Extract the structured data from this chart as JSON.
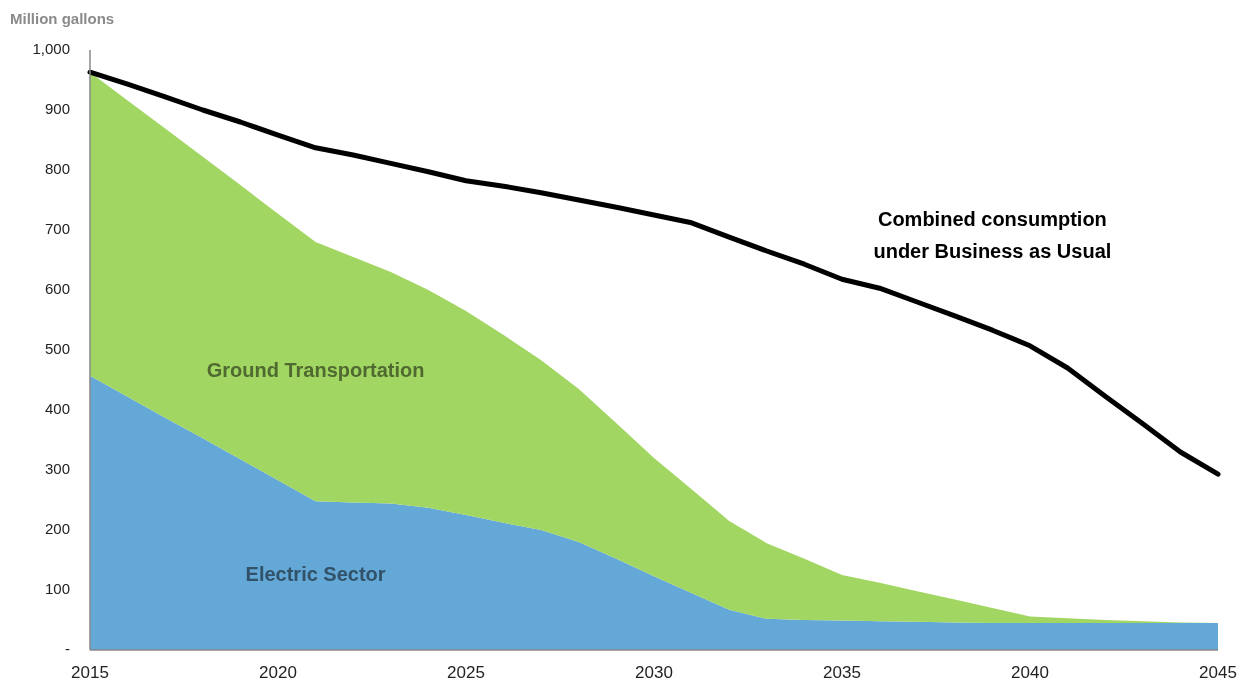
{
  "chart_data": {
    "type": "area",
    "stacked": true,
    "ylabel": "Million gallons",
    "x": [
      2015,
      2016,
      2017,
      2018,
      2019,
      2020,
      2021,
      2022,
      2023,
      2024,
      2025,
      2026,
      2027,
      2028,
      2029,
      2030,
      2031,
      2032,
      2033,
      2034,
      2035,
      2036,
      2037,
      2038,
      2039,
      2040,
      2041,
      2042,
      2043,
      2044,
      2045
    ],
    "xlim": [
      2015,
      2045
    ],
    "xticks": [
      2015,
      2020,
      2025,
      2030,
      2035,
      2040,
      2045
    ],
    "ylim": [
      0,
      1000
    ],
    "yticks": [
      {
        "value": 0,
        "label": "-"
      },
      100,
      200,
      300,
      400,
      500,
      600,
      700,
      800,
      900,
      {
        "value": 1000,
        "label": "1,000"
      }
    ],
    "series": [
      {
        "name": "Electric Sector",
        "color": "#63a8d6",
        "values": [
          457,
          422,
          387,
          353,
          318,
          283,
          248,
          246,
          244,
          237,
          225,
          212,
          200,
          180,
          152,
          123,
          95,
          67,
          52,
          50,
          49,
          48,
          47,
          46,
          45,
          45,
          45,
          45,
          45,
          45,
          45
        ]
      },
      {
        "name": "Ground Transportation",
        "color": "#a2d662",
        "values": [
          506,
          494,
          482,
          469,
          457,
          444,
          432,
          409,
          386,
          363,
          340,
          313,
          283,
          255,
          226,
          197,
          173,
          148,
          126,
          102,
          76,
          64,
          51,
          38,
          25,
          11,
          8,
          5,
          3,
          1,
          0
        ]
      },
      {
        "name": "Combined consumption under Business as Usual",
        "type": "line",
        "color": "#000000",
        "values": [
          963,
          943,
          922,
          900,
          880,
          858,
          837,
          825,
          811,
          797,
          782,
          773,
          762,
          750,
          738,
          725,
          712,
          688,
          665,
          643,
          618,
          603,
          580,
          557,
          533,
          507,
          470,
          423,
          377,
          330,
          293
        ]
      }
    ]
  }
}
